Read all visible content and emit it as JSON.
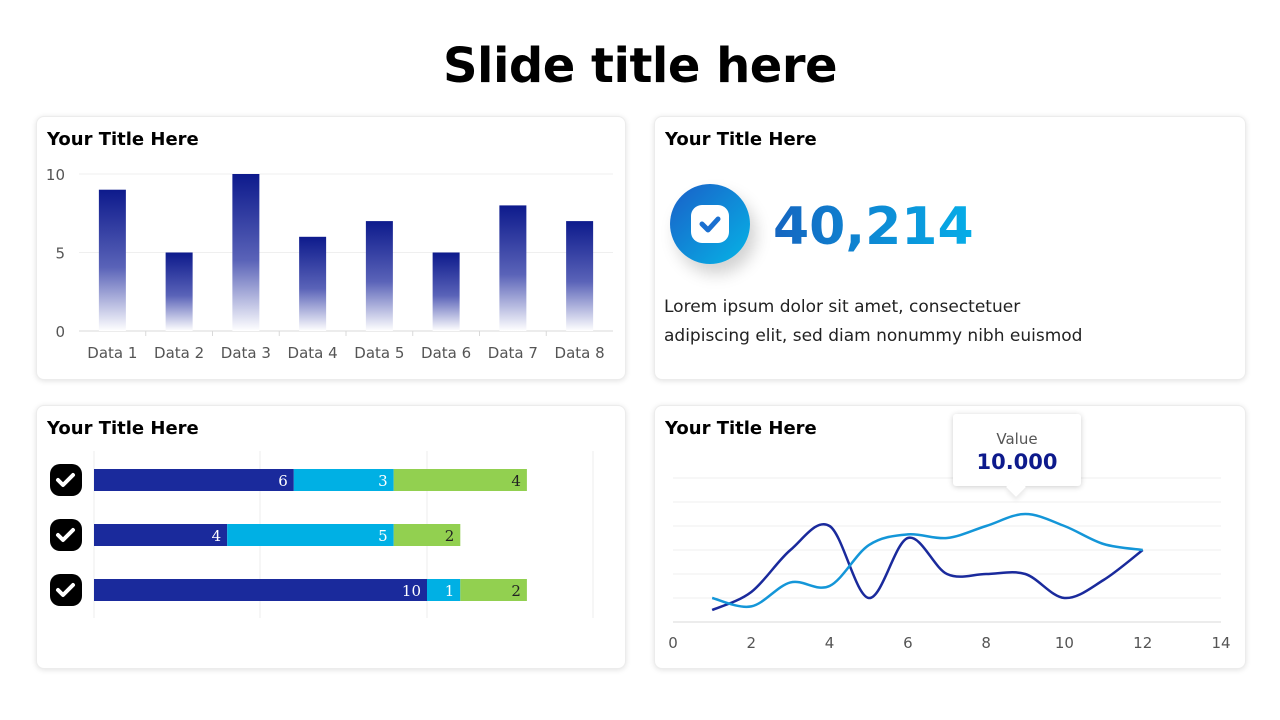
{
  "slide": {
    "title": "Slide title here"
  },
  "colors": {
    "dark_blue": "#1a2a9c",
    "light_blue": "#00b0e4",
    "green": "#92d050",
    "line_dark": "#1a2a9c",
    "line_light": "#1496d8"
  },
  "cards": {
    "bar": {
      "title": "Your Title Here",
      "chart_data": {
        "type": "bar",
        "categories": [
          "Data 1",
          "Data 2",
          "Data 3",
          "Data 4",
          "Data 5",
          "Data 6",
          "Data 7",
          "Data 8"
        ],
        "values": [
          9,
          5,
          10,
          6,
          7,
          5,
          8,
          7
        ],
        "yticks": [
          0,
          5,
          10
        ],
        "ylim": [
          0,
          10
        ]
      }
    },
    "kpi": {
      "title": "Your Title Here",
      "icon": "check-badge-icon",
      "value": "40,214",
      "desc_line1": "Lorem ipsum dolor sit amet, consectetuer",
      "desc_line2": "adipiscing elit, sed diam nonummy nibh euismod"
    },
    "stacked": {
      "title": "Your Title Here",
      "icon": "check-icon",
      "chart_data": {
        "type": "bar",
        "orientation": "horizontal",
        "stacked": true,
        "rows": 3,
        "series": [
          {
            "values": [
              6,
              4,
              10
            ],
            "labels": [
              "6",
              "4",
              "10"
            ]
          },
          {
            "values": [
              3,
              5,
              1
            ],
            "labels": [
              "3",
              "5",
              "1"
            ]
          },
          {
            "values": [
              4,
              2,
              2
            ],
            "labels": [
              "4",
              "2",
              "2"
            ]
          }
        ],
        "xlim": [
          0,
          16
        ]
      }
    },
    "line": {
      "title": "Your Title Here",
      "tooltip_label": "Value",
      "tooltip_value": "10.000",
      "chart_data": {
        "type": "line",
        "xticks": [
          "0",
          "2",
          "4",
          "6",
          "8",
          "10",
          "12",
          "14"
        ],
        "xlim": [
          0,
          14
        ],
        "ylim": [
          0,
          12
        ],
        "series": [
          {
            "color": "#1a2a9c",
            "x": [
              1,
              2,
              3,
              4,
              5,
              6,
              7,
              8,
              9,
              10,
              11,
              12
            ],
            "y": [
              1,
              2.5,
              6,
              8,
              2,
              7,
              4,
              4,
              4,
              2,
              3.5,
              6
            ]
          },
          {
            "color": "#1496d8",
            "x": [
              1,
              2,
              3,
              4,
              5,
              6,
              7,
              8,
              9,
              10,
              11,
              12
            ],
            "y": [
              2,
              1.3,
              3.3,
              3,
              6.4,
              7.3,
              7,
              8,
              9,
              8,
              6.5,
              6
            ]
          }
        ]
      }
    }
  }
}
